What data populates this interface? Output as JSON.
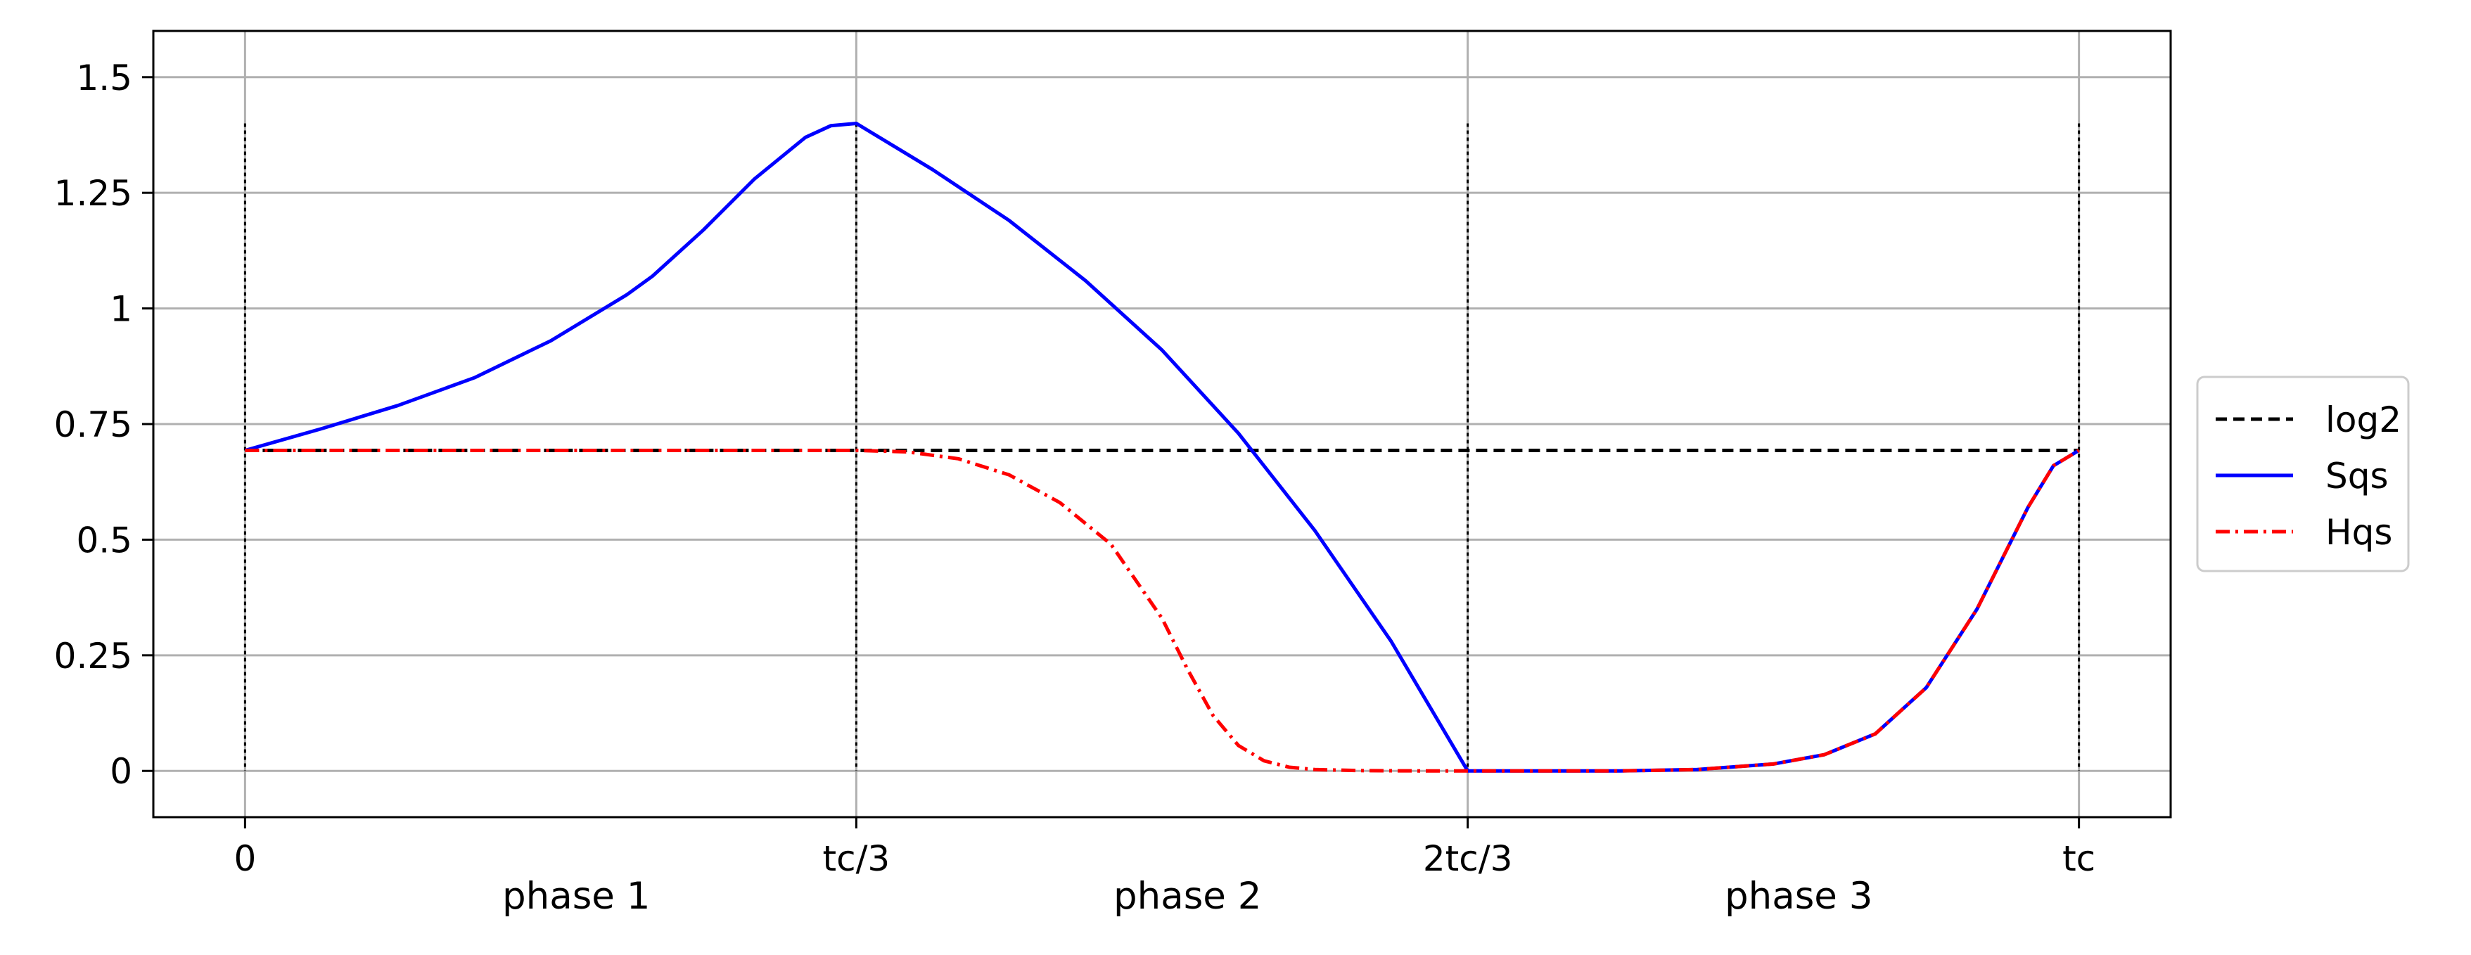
{
  "chart_data": {
    "type": "line",
    "title": "",
    "xlabel": "",
    "ylabel": "",
    "xlim": [
      -0.05,
      1.05
    ],
    "ylim": [
      -0.1,
      1.6
    ],
    "grid": true,
    "legend_position": "outside-right",
    "x_ticks": [
      {
        "value": 0,
        "label": "0"
      },
      {
        "value": 0.3333,
        "label": "tc/3"
      },
      {
        "value": 0.6667,
        "label": "2tc/3"
      },
      {
        "value": 1,
        "label": "tc"
      }
    ],
    "y_ticks": [
      {
        "value": 0,
        "label": "0"
      },
      {
        "value": 0.25,
        "label": "0.25"
      },
      {
        "value": 0.5,
        "label": "0.5"
      },
      {
        "value": 0.75,
        "label": "0.75"
      },
      {
        "value": 1,
        "label": "1"
      },
      {
        "value": 1.25,
        "label": "1.25"
      },
      {
        "value": 1.5,
        "label": "1.5"
      }
    ],
    "phase_labels": [
      {
        "x": 0.1806,
        "text": "phase 1"
      },
      {
        "x": 0.5139,
        "text": "phase 2"
      },
      {
        "x": 0.8472,
        "text": "phase 3"
      }
    ],
    "vertical_markers": {
      "x": [
        0,
        0.3333,
        0.6667,
        1
      ],
      "ymax": 1.4,
      "color": "#000000"
    },
    "series": [
      {
        "name": "log2",
        "color": "#000000",
        "style": "dashed",
        "x": [
          0,
          1
        ],
        "y": [
          0.693,
          0.693
        ]
      },
      {
        "name": "Sqs",
        "color": "#0000ff",
        "style": "solid",
        "x": [
          0,
          0.0417,
          0.0833,
          0.125,
          0.1667,
          0.2083,
          0.2222,
          0.25,
          0.2778,
          0.3056,
          0.3194,
          0.3333,
          0.375,
          0.4167,
          0.4583,
          0.5,
          0.5417,
          0.5833,
          0.625,
          0.6667,
          0.7083,
          0.75,
          0.7917,
          0.8333,
          0.8611,
          0.8889,
          0.9167,
          0.9444,
          0.9722,
          0.9861,
          1
        ],
        "y": [
          0.693,
          0.74,
          0.79,
          0.85,
          0.93,
          1.03,
          1.07,
          1.17,
          1.28,
          1.37,
          1.395,
          1.4,
          1.3,
          1.19,
          1.06,
          0.91,
          0.73,
          0.52,
          0.28,
          0.0,
          0.0,
          0.0,
          0.003,
          0.015,
          0.035,
          0.08,
          0.18,
          0.35,
          0.57,
          0.66,
          0.693
        ]
      },
      {
        "name": "Hqs",
        "color": "#ff0000",
        "style": "dashdot",
        "x": [
          0,
          0.1667,
          0.3333,
          0.3611,
          0.3889,
          0.4167,
          0.4444,
          0.4722,
          0.5,
          0.5139,
          0.5278,
          0.5417,
          0.5556,
          0.5694,
          0.5833,
          0.6111,
          0.6389,
          0.6667,
          0.7083,
          0.75,
          0.7917,
          0.8333,
          0.8611,
          0.8889,
          0.9167,
          0.9444,
          0.9722,
          0.9861,
          1
        ],
        "y": [
          0.693,
          0.693,
          0.693,
          0.69,
          0.675,
          0.64,
          0.58,
          0.49,
          0.33,
          0.22,
          0.12,
          0.055,
          0.022,
          0.008,
          0.003,
          0.0005,
          0.0,
          0.0,
          0.0,
          0.0,
          0.003,
          0.015,
          0.035,
          0.08,
          0.18,
          0.35,
          0.57,
          0.66,
          0.693
        ]
      }
    ]
  }
}
